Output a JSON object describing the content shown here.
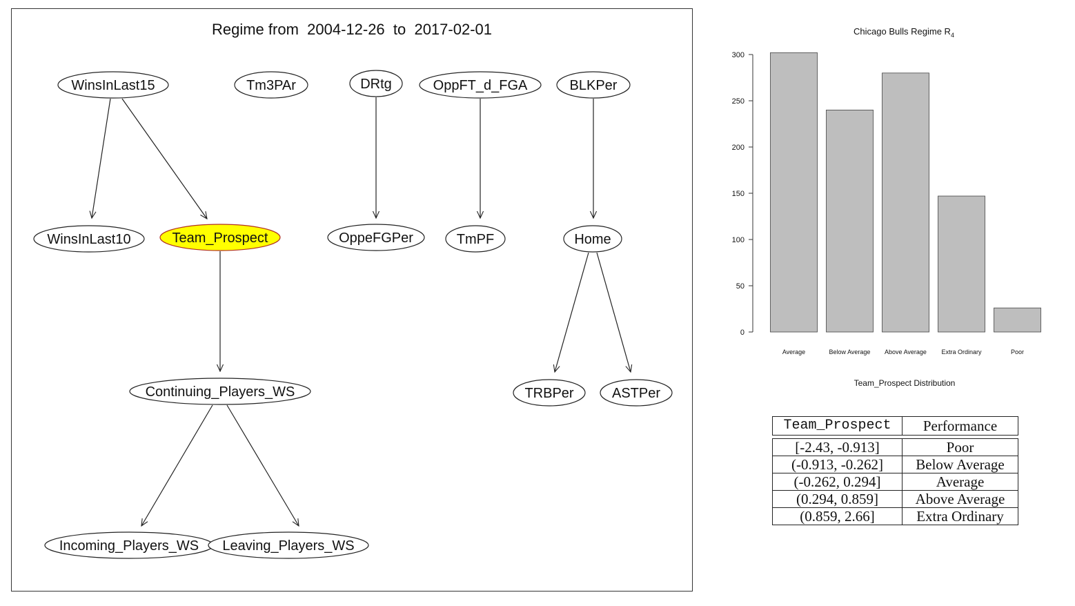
{
  "graph": {
    "title": "Regime from  2004-12-26  to  2017-02-01",
    "highlight_color": "#ffff00",
    "highlight_stroke": "#b03020",
    "nodes": [
      {
        "id": "WinsInLast15",
        "label": "WinsInLast15"
      },
      {
        "id": "Tm3PAr",
        "label": "Tm3PAr"
      },
      {
        "id": "DRtg",
        "label": "DRtg"
      },
      {
        "id": "OppFT_d_FGA",
        "label": "OppFT_d_FGA"
      },
      {
        "id": "BLKPer",
        "label": "BLKPer"
      },
      {
        "id": "WinsInLast10",
        "label": "WinsInLast10"
      },
      {
        "id": "Team_Prospect",
        "label": "Team_Prospect",
        "highlighted": true
      },
      {
        "id": "OppeFGPer",
        "label": "OppeFGPer"
      },
      {
        "id": "TmPF",
        "label": "TmPF"
      },
      {
        "id": "Home",
        "label": "Home"
      },
      {
        "id": "Continuing_Players_WS",
        "label": "Continuing_Players_WS"
      },
      {
        "id": "TRBPer",
        "label": "TRBPer"
      },
      {
        "id": "ASTPer",
        "label": "ASTPer"
      },
      {
        "id": "Incoming_Players_WS",
        "label": "Incoming_Players_WS"
      },
      {
        "id": "Leaving_Players_WS",
        "label": "Leaving_Players_WS"
      }
    ],
    "edges": [
      [
        "WinsInLast15",
        "WinsInLast10"
      ],
      [
        "WinsInLast15",
        "Team_Prospect"
      ],
      [
        "DRtg",
        "OppeFGPer"
      ],
      [
        "OppFT_d_FGA",
        "TmPF"
      ],
      [
        "BLKPer",
        "Home"
      ],
      [
        "Team_Prospect",
        "Continuing_Players_WS"
      ],
      [
        "Home",
        "TRBPer"
      ],
      [
        "Home",
        "ASTPer"
      ],
      [
        "Continuing_Players_WS",
        "Incoming_Players_WS"
      ],
      [
        "Continuing_Players_WS",
        "Leaving_Players_WS"
      ]
    ]
  },
  "chart_data": {
    "type": "bar",
    "title": "Chicago Bulls Regime R",
    "title_subscript": "4",
    "xlabel": "Team_Prospect Distribution",
    "ylabel": "",
    "categories": [
      "Average",
      "Below Average",
      "Above Average",
      "Extra Ordinary",
      "Poor"
    ],
    "values": [
      302,
      240,
      280,
      147,
      26
    ],
    "ylim": [
      0,
      300
    ],
    "yticks": [
      0,
      50,
      100,
      150,
      200,
      250,
      300
    ],
    "bar_color": "#bebebe",
    "grid": false,
    "legend": "none"
  },
  "mapping_table": {
    "headers": [
      "Team_Prospect",
      "Performance"
    ],
    "rows": [
      [
        "[-2.43, -0.913]",
        "Poor"
      ],
      [
        "(-0.913, -0.262]",
        "Below Average"
      ],
      [
        "(-0.262, 0.294]",
        "Average"
      ],
      [
        "(0.294, 0.859]",
        "Above Average"
      ],
      [
        "(0.859, 2.66]",
        "Extra Ordinary"
      ]
    ]
  }
}
